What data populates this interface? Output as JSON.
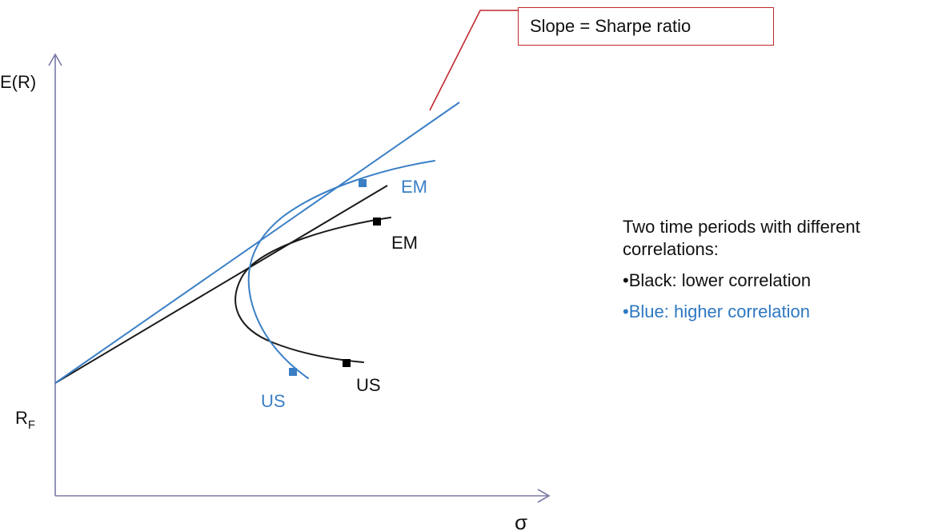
{
  "axes": {
    "y_label": "E(R)",
    "x_label": "σ",
    "rf_main": "R",
    "rf_sub": "F"
  },
  "callout": {
    "text": "Slope = Sharpe ratio"
  },
  "frontiers": [
    {
      "name": "Black",
      "color": "#1a1a1a",
      "points": [
        {
          "label": "EM"
        },
        {
          "label": "US"
        }
      ]
    },
    {
      "name": "Blue",
      "color": "#3a7fc5",
      "points": [
        {
          "label": "EM"
        },
        {
          "label": "US"
        }
      ]
    }
  ],
  "colors": {
    "axis": "#7a7aa6",
    "callout_border": "#c0282d",
    "blue_text": "#2e78c2"
  },
  "note": {
    "intro": "Two time periods with different correlations:",
    "black_bullet": "•Black: lower correlation",
    "blue_bullet": "•Blue: higher correlation"
  }
}
